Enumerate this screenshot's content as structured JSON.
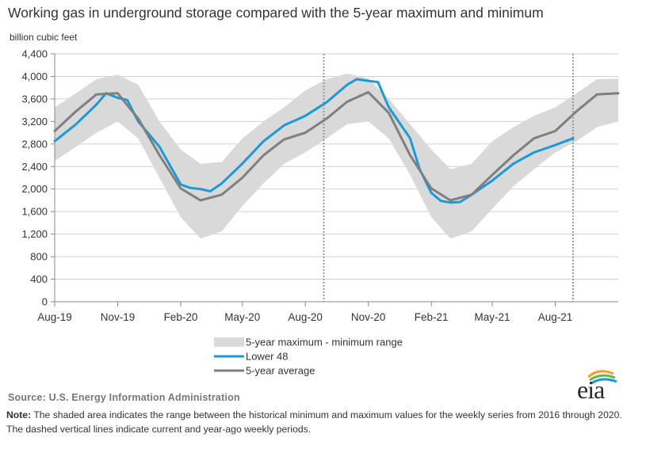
{
  "title": "Working gas in underground  storage compared with the 5-year maximum and minimum",
  "y_unit_label": "billion cubic feet",
  "source": "Source: U.S. Energy Information Administration",
  "note_label": "Note:",
  "note_text": " The shaded area indicates the range between the historical minimum and maximum values for the weekly series from 2016 through 2020. The dashed vertical lines indicate current and year-ago weekly periods.",
  "logo_text": "eia",
  "colors": {
    "range_fill": "#d9d9d9",
    "lower48": "#1b9ad6",
    "avg": "#7f7f7f",
    "axis": "#888888",
    "grid": "#d0d0d0",
    "logo_arc_orange": "#f0a030",
    "logo_arc_green": "#6cb33f",
    "logo_arc_blue": "#1b9ad6"
  },
  "chart_data": {
    "type": "line",
    "y_ticks": [
      0,
      400,
      800,
      1200,
      1600,
      2000,
      2400,
      2800,
      3200,
      3600,
      4000,
      4400
    ],
    "y_tick_labels": [
      "0",
      "400",
      "800",
      "1,200",
      "1,600",
      "2,000",
      "2,400",
      "2,800",
      "3,200",
      "3,600",
      "4,000",
      "4,400"
    ],
    "ylim": [
      0,
      4400
    ],
    "grid": true,
    "x_tick_labels": [
      "Aug-19",
      "Nov-19",
      "Feb-20",
      "May-20",
      "Aug-20",
      "Nov-20",
      "Feb-21",
      "May-21",
      "Aug-21"
    ],
    "x_ticks": [
      "2019-08",
      "2019-11",
      "2020-02",
      "2020-05",
      "2020-08",
      "2020-11",
      "2021-02",
      "2021-05",
      "2021-08"
    ],
    "x_range": [
      "2019-08",
      "2021-11"
    ],
    "current_period_markers": [
      "2020-08-28",
      "2021-08-27"
    ],
    "legend_position": "bottom-center",
    "series": [
      {
        "name": "5-year maximum - minimum range",
        "kind": "band",
        "x": [
          "2019-08",
          "2019-09",
          "2019-10",
          "2019-11",
          "2019-12",
          "2020-01",
          "2020-02",
          "2020-03",
          "2020-04",
          "2020-05",
          "2020-06",
          "2020-07",
          "2020-08",
          "2020-09",
          "2020-10",
          "2020-11",
          "2020-12",
          "2021-01",
          "2021-02",
          "2021-03",
          "2021-04",
          "2021-05",
          "2021-06",
          "2021-07",
          "2021-08",
          "2021-09",
          "2021-10",
          "2021-11"
        ],
        "max": [
          3450,
          3700,
          3950,
          4030,
          3850,
          3200,
          2700,
          2450,
          2480,
          2900,
          3200,
          3450,
          3750,
          3950,
          4050,
          3960,
          3600,
          3150,
          2700,
          2350,
          2450,
          2850,
          3100,
          3300,
          3450,
          3700,
          3950,
          3960
        ],
        "min": [
          2500,
          2750,
          3000,
          3200,
          2900,
          2200,
          1500,
          1120,
          1250,
          1700,
          2100,
          2450,
          2650,
          2900,
          3150,
          3200,
          2900,
          2250,
          1500,
          1120,
          1250,
          1650,
          2050,
          2350,
          2650,
          2850,
          3100,
          3200
        ]
      },
      {
        "name": "Lower 48",
        "x": [
          "2019-08",
          "2019-09",
          "2019-10",
          "2019-10-15",
          "2019-11",
          "2019-11-15",
          "2019-12",
          "2020-01",
          "2020-02",
          "2020-02-15",
          "2020-03",
          "2020-03-15",
          "2020-04",
          "2020-05",
          "2020-06",
          "2020-07",
          "2020-08",
          "2020-09",
          "2020-10",
          "2020-10-15",
          "2020-11",
          "2020-11-15",
          "2020-12",
          "2021-01",
          "2021-01-15",
          "2021-02",
          "2021-02-15",
          "2021-03",
          "2021-03-15",
          "2021-04",
          "2021-05",
          "2021-06",
          "2021-07",
          "2021-08",
          "2021-08-27"
        ],
        "values": [
          2850,
          3150,
          3500,
          3700,
          3620,
          3580,
          3200,
          2750,
          2080,
          2020,
          2000,
          1960,
          2100,
          2450,
          2850,
          3130,
          3300,
          3540,
          3850,
          3950,
          3920,
          3900,
          3450,
          2900,
          2350,
          1930,
          1790,
          1760,
          1770,
          1900,
          2150,
          2450,
          2650,
          2780,
          2900
        ]
      },
      {
        "name": "5-year average",
        "x": [
          "2019-08",
          "2019-09",
          "2019-10",
          "2019-11",
          "2019-12",
          "2020-01",
          "2020-02",
          "2020-03",
          "2020-04",
          "2020-05",
          "2020-06",
          "2020-07",
          "2020-08",
          "2020-09",
          "2020-10",
          "2020-11",
          "2020-12",
          "2021-01",
          "2021-02",
          "2021-03",
          "2021-04",
          "2021-05",
          "2021-06",
          "2021-07",
          "2021-08",
          "2021-09",
          "2021-10",
          "2021-11"
        ],
        "values": [
          3030,
          3380,
          3680,
          3700,
          3250,
          2600,
          2010,
          1800,
          1900,
          2200,
          2600,
          2880,
          3000,
          3250,
          3550,
          3720,
          3350,
          2600,
          2010,
          1800,
          1900,
          2250,
          2600,
          2900,
          3030,
          3380,
          3680,
          3700
        ]
      }
    ]
  }
}
